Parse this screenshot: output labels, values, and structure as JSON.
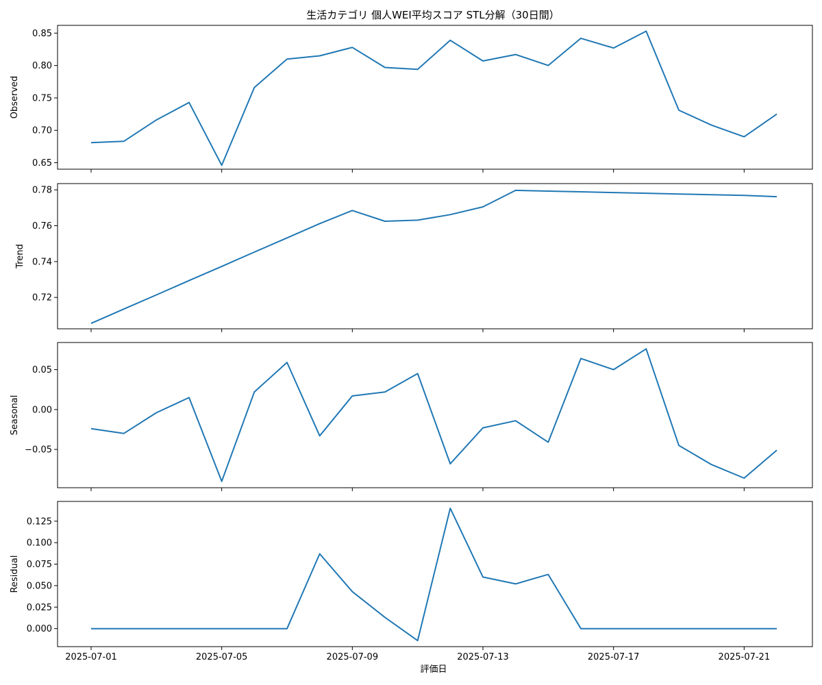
{
  "chart_data": {
    "type": "line",
    "title": "生活カテゴリ 個人WEI平均スコア STL分解（30日間）",
    "xlabel": "評価日",
    "x": [
      "2025-07-01",
      "2025-07-02",
      "2025-07-03",
      "2025-07-04",
      "2025-07-05",
      "2025-07-06",
      "2025-07-07",
      "2025-07-08",
      "2025-07-09",
      "2025-07-10",
      "2025-07-11",
      "2025-07-12",
      "2025-07-13",
      "2025-07-14",
      "2025-07-15",
      "2025-07-16",
      "2025-07-17",
      "2025-07-18",
      "2025-07-19",
      "2025-07-20",
      "2025-07-21",
      "2025-07-22"
    ],
    "x_ticks": [
      "2025-07-01",
      "2025-07-05",
      "2025-07-09",
      "2025-07-13",
      "2025-07-17",
      "2025-07-21"
    ],
    "color": "#1f77b4",
    "panels": [
      {
        "name": "Observed",
        "ylabel": "Observed",
        "ylim": [
          0.64,
          0.862
        ],
        "y_ticks": [
          "0.65",
          "0.70",
          "0.75",
          "0.80",
          "0.85"
        ],
        "values": [
          0.681,
          0.683,
          0.716,
          0.743,
          0.646,
          0.766,
          0.81,
          0.815,
          0.828,
          0.797,
          0.794,
          0.839,
          0.807,
          0.817,
          0.8,
          0.842,
          0.827,
          0.853,
          0.731,
          0.708,
          0.69,
          0.725
        ]
      },
      {
        "name": "Trend",
        "ylabel": "Trend",
        "ylim": [
          0.7025,
          0.7835
        ],
        "y_ticks": [
          "0.72",
          "0.74",
          "0.76",
          "0.78"
        ],
        "values": [
          0.7055,
          0.7135,
          0.7214,
          0.7294,
          0.7373,
          0.7453,
          0.7532,
          0.7612,
          0.7685,
          0.7625,
          0.7631,
          0.7662,
          0.7705,
          0.7797,
          0.7793,
          0.7789,
          0.7785,
          0.7781,
          0.7777,
          0.7773,
          0.7769,
          0.7762
        ]
      },
      {
        "name": "Seasonal",
        "ylabel": "Seasonal",
        "ylim": [
          -0.098,
          0.084
        ],
        "y_ticks": [
          "0.05",
          "0.00",
          "−0.05"
        ],
        "values": [
          -0.024,
          -0.03,
          -0.004,
          0.015,
          -0.09,
          0.022,
          0.059,
          -0.033,
          0.017,
          0.022,
          0.045,
          -0.068,
          -0.023,
          -0.014,
          -0.041,
          0.064,
          0.05,
          0.076,
          -0.045,
          -0.069,
          -0.086,
          -0.051
        ]
      },
      {
        "name": "Residual",
        "ylabel": "Residual",
        "ylim": [
          -0.021,
          0.148
        ],
        "y_ticks": [
          "0.000",
          "0.025",
          "0.050",
          "0.075",
          "0.100",
          "0.125"
        ],
        "values": [
          0,
          0,
          0,
          0,
          0,
          0,
          0,
          0.087,
          0.043,
          0.013,
          -0.014,
          0.14,
          0.06,
          0.052,
          0.063,
          0,
          0,
          0,
          0,
          0,
          0,
          0
        ]
      }
    ]
  }
}
